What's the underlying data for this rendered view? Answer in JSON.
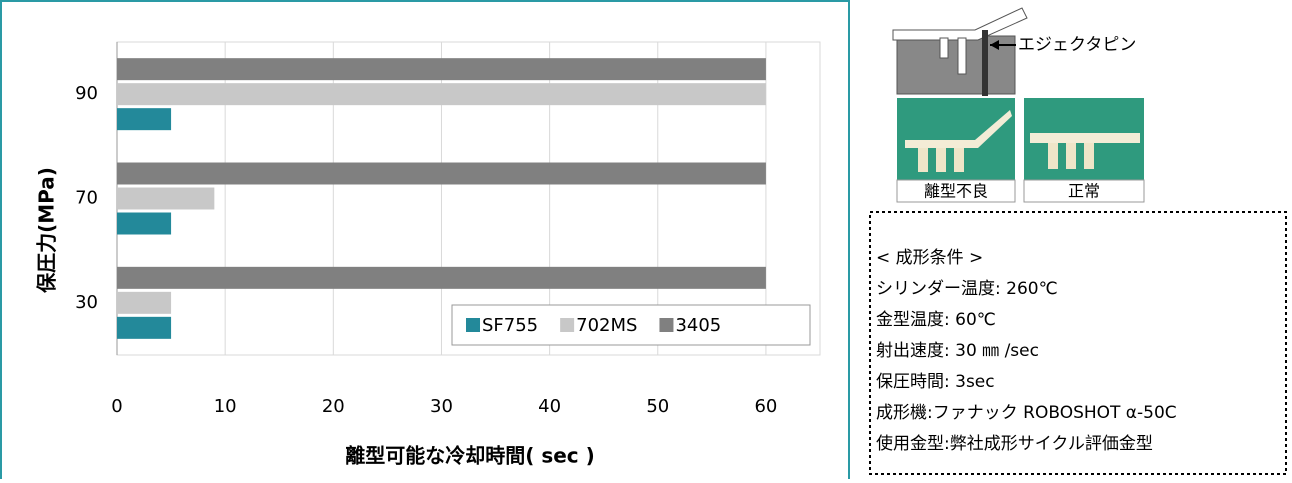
{
  "chart_data": {
    "type": "bar",
    "orientation": "horizontal",
    "y_axis_label": "保圧力(MPa)",
    "x_axis_label": "離型可能な冷却時間( sec )",
    "categories": [
      "90",
      "70",
      "30"
    ],
    "series": [
      {
        "name": "SF755",
        "color": "#23899a",
        "values": [
          5,
          5,
          5
        ]
      },
      {
        "name": "702MS",
        "color": "#c8c8c8",
        "values": [
          60,
          9,
          5
        ]
      },
      {
        "name": "3405",
        "color": "#808080",
        "values": [
          60,
          60,
          60
        ]
      }
    ],
    "xlim": [
      0,
      65
    ],
    "xticks": [
      0,
      10,
      20,
      30,
      40,
      50,
      60
    ],
    "grid": true,
    "legend": "lower right"
  },
  "diagram": {
    "pin_label": "エジェクタピン",
    "photo_labels": [
      "離型不良",
      "正常"
    ]
  },
  "conditions": [
    "< 成形条件 >",
    "シリンダー温度: 260℃",
    "金型温度: 60℃",
    "射出速度: 30 ㎜ /sec",
    "保圧時間: 3sec",
    "成形機:ファナック ROBOSHOT α-50C",
    "使用金型:弊社成形サイクル評価金型"
  ]
}
